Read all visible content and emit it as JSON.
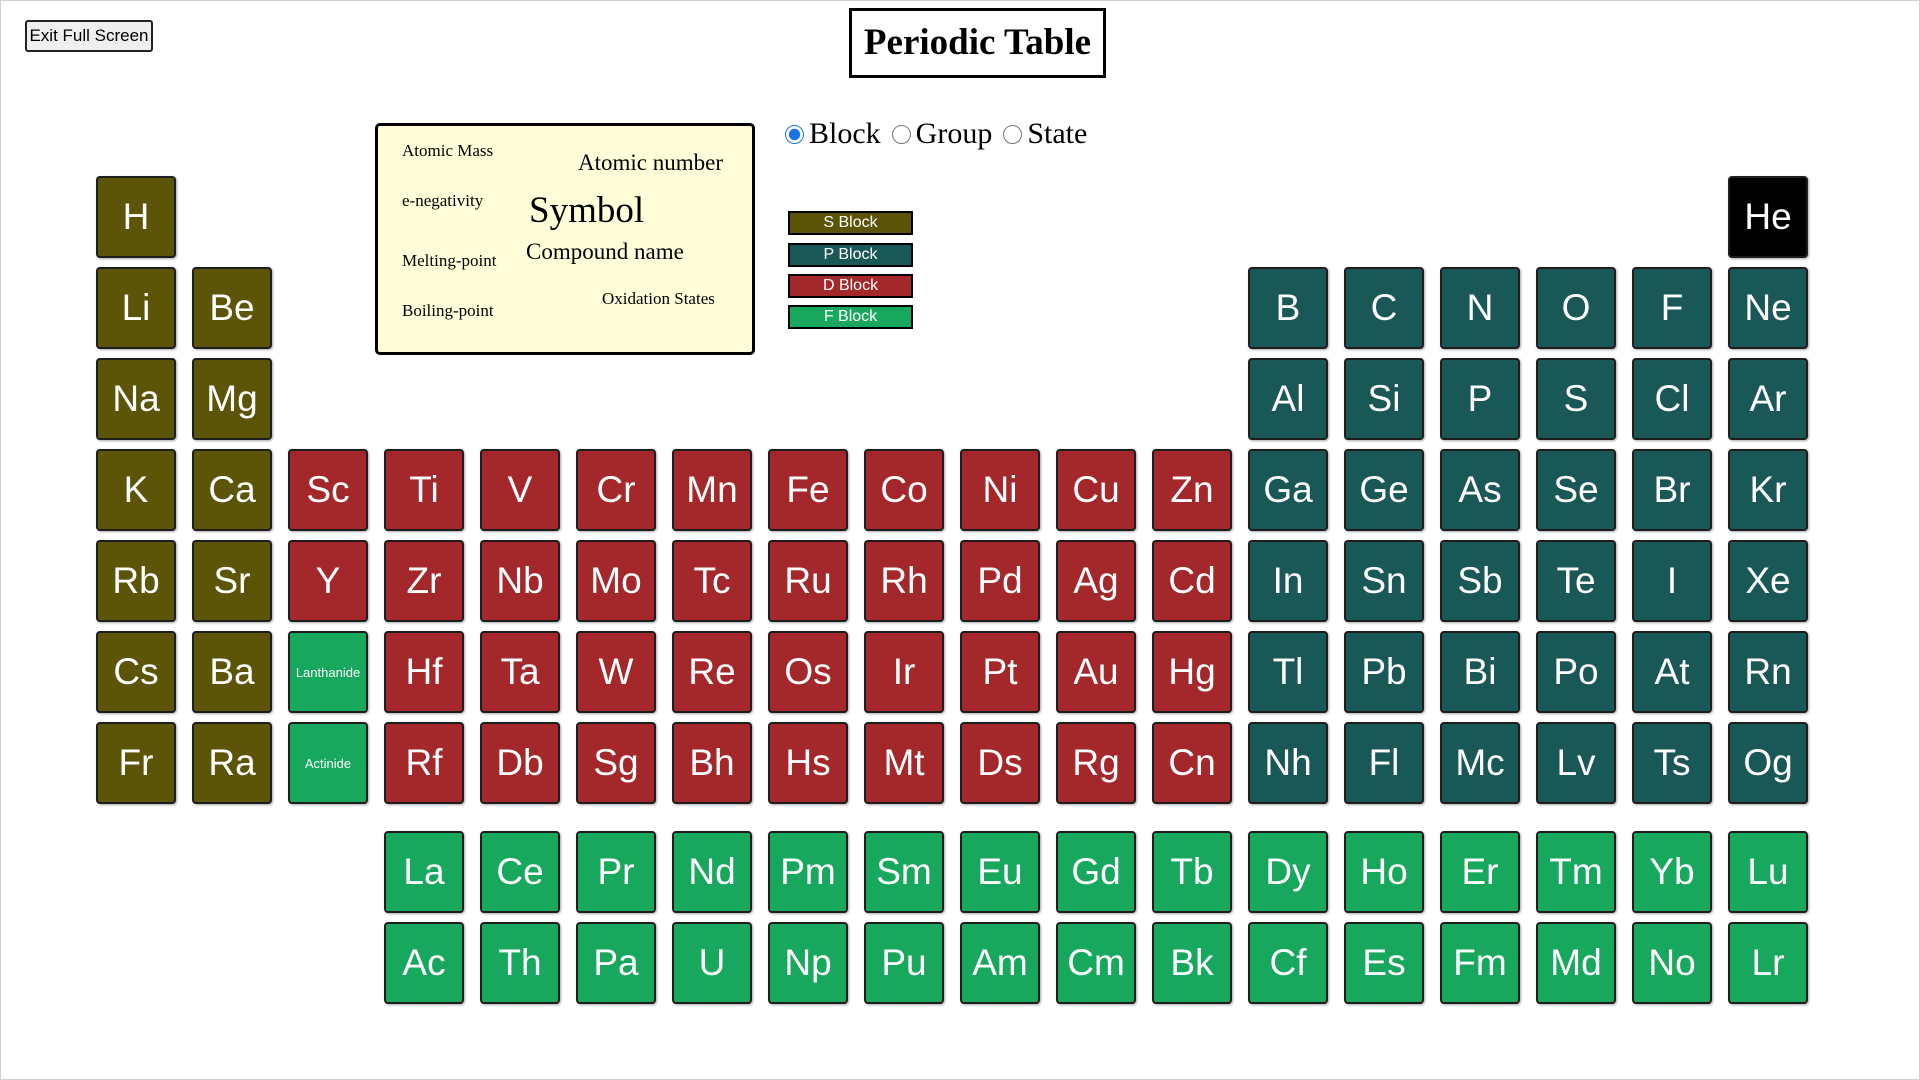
{
  "toolbar": {
    "exit_label": "Exit Full Screen"
  },
  "page_title": "Periodic Table",
  "legend_card": {
    "atomic_mass": "Atomic Mass",
    "atomic_number": "Atomic number",
    "e_negativity": "e-negativity",
    "symbol": "Symbol",
    "compound_name": "Compound name",
    "melting_point": "Melting-point",
    "oxidation_states": "Oxidation States",
    "boiling_point": "Boiling-point"
  },
  "view_modes": {
    "selected": "Block",
    "options": [
      "Block",
      "Group",
      "State"
    ]
  },
  "block_legend": [
    {
      "label": "S Block",
      "color": "#5c5508"
    },
    {
      "label": "P Block",
      "color": "#1a5757"
    },
    {
      "label": "D Block",
      "color": "#a4282b"
    },
    {
      "label": "F Block",
      "color": "#17a85e"
    }
  ],
  "colors": {
    "s": "#5c5508",
    "p": "#1a5757",
    "d": "#a4282b",
    "f": "#17a85e",
    "he": "#000000"
  },
  "elements": [
    {
      "symbol": "H",
      "block": "s",
      "row": 1,
      "col": 1
    },
    {
      "symbol": "He",
      "block": "he",
      "row": 1,
      "col": 18
    },
    {
      "symbol": "Li",
      "block": "s",
      "row": 2,
      "col": 1
    },
    {
      "symbol": "Be",
      "block": "s",
      "row": 2,
      "col": 2
    },
    {
      "symbol": "B",
      "block": "p",
      "row": 2,
      "col": 13
    },
    {
      "symbol": "C",
      "block": "p",
      "row": 2,
      "col": 14
    },
    {
      "symbol": "N",
      "block": "p",
      "row": 2,
      "col": 15
    },
    {
      "symbol": "O",
      "block": "p",
      "row": 2,
      "col": 16
    },
    {
      "symbol": "F",
      "block": "p",
      "row": 2,
      "col": 17
    },
    {
      "symbol": "Ne",
      "block": "p",
      "row": 2,
      "col": 18
    },
    {
      "symbol": "Na",
      "block": "s",
      "row": 3,
      "col": 1
    },
    {
      "symbol": "Mg",
      "block": "s",
      "row": 3,
      "col": 2
    },
    {
      "symbol": "Al",
      "block": "p",
      "row": 3,
      "col": 13
    },
    {
      "symbol": "Si",
      "block": "p",
      "row": 3,
      "col": 14
    },
    {
      "symbol": "P",
      "block": "p",
      "row": 3,
      "col": 15
    },
    {
      "symbol": "S",
      "block": "p",
      "row": 3,
      "col": 16
    },
    {
      "symbol": "Cl",
      "block": "p",
      "row": 3,
      "col": 17
    },
    {
      "symbol": "Ar",
      "block": "p",
      "row": 3,
      "col": 18
    },
    {
      "symbol": "K",
      "block": "s",
      "row": 4,
      "col": 1
    },
    {
      "symbol": "Ca",
      "block": "s",
      "row": 4,
      "col": 2
    },
    {
      "symbol": "Sc",
      "block": "d",
      "row": 4,
      "col": 3
    },
    {
      "symbol": "Ti",
      "block": "d",
      "row": 4,
      "col": 4
    },
    {
      "symbol": "V",
      "block": "d",
      "row": 4,
      "col": 5
    },
    {
      "symbol": "Cr",
      "block": "d",
      "row": 4,
      "col": 6
    },
    {
      "symbol": "Mn",
      "block": "d",
      "row": 4,
      "col": 7
    },
    {
      "symbol": "Fe",
      "block": "d",
      "row": 4,
      "col": 8
    },
    {
      "symbol": "Co",
      "block": "d",
      "row": 4,
      "col": 9
    },
    {
      "symbol": "Ni",
      "block": "d",
      "row": 4,
      "col": 10
    },
    {
      "symbol": "Cu",
      "block": "d",
      "row": 4,
      "col": 11
    },
    {
      "symbol": "Zn",
      "block": "d",
      "row": 4,
      "col": 12
    },
    {
      "symbol": "Ga",
      "block": "p",
      "row": 4,
      "col": 13
    },
    {
      "symbol": "Ge",
      "block": "p",
      "row": 4,
      "col": 14
    },
    {
      "symbol": "As",
      "block": "p",
      "row": 4,
      "col": 15
    },
    {
      "symbol": "Se",
      "block": "p",
      "row": 4,
      "col": 16
    },
    {
      "symbol": "Br",
      "block": "p",
      "row": 4,
      "col": 17
    },
    {
      "symbol": "Kr",
      "block": "p",
      "row": 4,
      "col": 18
    },
    {
      "symbol": "Rb",
      "block": "s",
      "row": 5,
      "col": 1
    },
    {
      "symbol": "Sr",
      "block": "s",
      "row": 5,
      "col": 2
    },
    {
      "symbol": "Y",
      "block": "d",
      "row": 5,
      "col": 3
    },
    {
      "symbol": "Zr",
      "block": "d",
      "row": 5,
      "col": 4
    },
    {
      "symbol": "Nb",
      "block": "d",
      "row": 5,
      "col": 5
    },
    {
      "symbol": "Mo",
      "block": "d",
      "row": 5,
      "col": 6
    },
    {
      "symbol": "Tc",
      "block": "d",
      "row": 5,
      "col": 7
    },
    {
      "symbol": "Ru",
      "block": "d",
      "row": 5,
      "col": 8
    },
    {
      "symbol": "Rh",
      "block": "d",
      "row": 5,
      "col": 9
    },
    {
      "symbol": "Pd",
      "block": "d",
      "row": 5,
      "col": 10
    },
    {
      "symbol": "Ag",
      "block": "d",
      "row": 5,
      "col": 11
    },
    {
      "symbol": "Cd",
      "block": "d",
      "row": 5,
      "col": 12
    },
    {
      "symbol": "In",
      "block": "p",
      "row": 5,
      "col": 13
    },
    {
      "symbol": "Sn",
      "block": "p",
      "row": 5,
      "col": 14
    },
    {
      "symbol": "Sb",
      "block": "p",
      "row": 5,
      "col": 15
    },
    {
      "symbol": "Te",
      "block": "p",
      "row": 5,
      "col": 16
    },
    {
      "symbol": "I",
      "block": "p",
      "row": 5,
      "col": 17
    },
    {
      "symbol": "Xe",
      "block": "p",
      "row": 5,
      "col": 18
    },
    {
      "symbol": "Cs",
      "block": "s",
      "row": 6,
      "col": 1
    },
    {
      "symbol": "Ba",
      "block": "s",
      "row": 6,
      "col": 2
    },
    {
      "symbol": "Lanthanide",
      "block": "f",
      "row": 6,
      "col": 3,
      "small": true
    },
    {
      "symbol": "Hf",
      "block": "d",
      "row": 6,
      "col": 4
    },
    {
      "symbol": "Ta",
      "block": "d",
      "row": 6,
      "col": 5
    },
    {
      "symbol": "W",
      "block": "d",
      "row": 6,
      "col": 6
    },
    {
      "symbol": "Re",
      "block": "d",
      "row": 6,
      "col": 7
    },
    {
      "symbol": "Os",
      "block": "d",
      "row": 6,
      "col": 8
    },
    {
      "symbol": "Ir",
      "block": "d",
      "row": 6,
      "col": 9
    },
    {
      "symbol": "Pt",
      "block": "d",
      "row": 6,
      "col": 10
    },
    {
      "symbol": "Au",
      "block": "d",
      "row": 6,
      "col": 11
    },
    {
      "symbol": "Hg",
      "block": "d",
      "row": 6,
      "col": 12
    },
    {
      "symbol": "Tl",
      "block": "p",
      "row": 6,
      "col": 13
    },
    {
      "symbol": "Pb",
      "block": "p",
      "row": 6,
      "col": 14
    },
    {
      "symbol": "Bi",
      "block": "p",
      "row": 6,
      "col": 15
    },
    {
      "symbol": "Po",
      "block": "p",
      "row": 6,
      "col": 16
    },
    {
      "symbol": "At",
      "block": "p",
      "row": 6,
      "col": 17
    },
    {
      "symbol": "Rn",
      "block": "p",
      "row": 6,
      "col": 18
    },
    {
      "symbol": "Fr",
      "block": "s",
      "row": 7,
      "col": 1
    },
    {
      "symbol": "Ra",
      "block": "s",
      "row": 7,
      "col": 2
    },
    {
      "symbol": "Actinide",
      "block": "f",
      "row": 7,
      "col": 3,
      "small": true
    },
    {
      "symbol": "Rf",
      "block": "d",
      "row": 7,
      "col": 4
    },
    {
      "symbol": "Db",
      "block": "d",
      "row": 7,
      "col": 5
    },
    {
      "symbol": "Sg",
      "block": "d",
      "row": 7,
      "col": 6
    },
    {
      "symbol": "Bh",
      "block": "d",
      "row": 7,
      "col": 7
    },
    {
      "symbol": "Hs",
      "block": "d",
      "row": 7,
      "col": 8
    },
    {
      "symbol": "Mt",
      "block": "d",
      "row": 7,
      "col": 9
    },
    {
      "symbol": "Ds",
      "block": "d",
      "row": 7,
      "col": 10
    },
    {
      "symbol": "Rg",
      "block": "d",
      "row": 7,
      "col": 11
    },
    {
      "symbol": "Cn",
      "block": "d",
      "row": 7,
      "col": 12
    },
    {
      "symbol": "Nh",
      "block": "p",
      "row": 7,
      "col": 13
    },
    {
      "symbol": "Fl",
      "block": "p",
      "row": 7,
      "col": 14
    },
    {
      "symbol": "Mc",
      "block": "p",
      "row": 7,
      "col": 15
    },
    {
      "symbol": "Lv",
      "block": "p",
      "row": 7,
      "col": 16
    },
    {
      "symbol": "Ts",
      "block": "p",
      "row": 7,
      "col": 17
    },
    {
      "symbol": "Og",
      "block": "p",
      "row": 7,
      "col": 18
    },
    {
      "symbol": "La",
      "block": "f",
      "row": 8,
      "col": 4
    },
    {
      "symbol": "Ce",
      "block": "f",
      "row": 8,
      "col": 5
    },
    {
      "symbol": "Pr",
      "block": "f",
      "row": 8,
      "col": 6
    },
    {
      "symbol": "Nd",
      "block": "f",
      "row": 8,
      "col": 7
    },
    {
      "symbol": "Pm",
      "block": "f",
      "row": 8,
      "col": 8
    },
    {
      "symbol": "Sm",
      "block": "f",
      "row": 8,
      "col": 9
    },
    {
      "symbol": "Eu",
      "block": "f",
      "row": 8,
      "col": 10
    },
    {
      "symbol": "Gd",
      "block": "f",
      "row": 8,
      "col": 11
    },
    {
      "symbol": "Tb",
      "block": "f",
      "row": 8,
      "col": 12
    },
    {
      "symbol": "Dy",
      "block": "f",
      "row": 8,
      "col": 13
    },
    {
      "symbol": "Ho",
      "block": "f",
      "row": 8,
      "col": 14
    },
    {
      "symbol": "Er",
      "block": "f",
      "row": 8,
      "col": 15
    },
    {
      "symbol": "Tm",
      "block": "f",
      "row": 8,
      "col": 16
    },
    {
      "symbol": "Yb",
      "block": "f",
      "row": 8,
      "col": 17
    },
    {
      "symbol": "Lu",
      "block": "f",
      "row": 8,
      "col": 18
    },
    {
      "symbol": "Ac",
      "block": "f",
      "row": 9,
      "col": 4
    },
    {
      "symbol": "Th",
      "block": "f",
      "row": 9,
      "col": 5
    },
    {
      "symbol": "Pa",
      "block": "f",
      "row": 9,
      "col": 6
    },
    {
      "symbol": "U",
      "block": "f",
      "row": 9,
      "col": 7
    },
    {
      "symbol": "Np",
      "block": "f",
      "row": 9,
      "col": 8
    },
    {
      "symbol": "Pu",
      "block": "f",
      "row": 9,
      "col": 9
    },
    {
      "symbol": "Am",
      "block": "f",
      "row": 9,
      "col": 10
    },
    {
      "symbol": "Cm",
      "block": "f",
      "row": 9,
      "col": 11
    },
    {
      "symbol": "Bk",
      "block": "f",
      "row": 9,
      "col": 12
    },
    {
      "symbol": "Cf",
      "block": "f",
      "row": 9,
      "col": 13
    },
    {
      "symbol": "Es",
      "block": "f",
      "row": 9,
      "col": 14
    },
    {
      "symbol": "Fm",
      "block": "f",
      "row": 9,
      "col": 15
    },
    {
      "symbol": "Md",
      "block": "f",
      "row": 9,
      "col": 16
    },
    {
      "symbol": "No",
      "block": "f",
      "row": 9,
      "col": 17
    },
    {
      "symbol": "Lr",
      "block": "f",
      "row": 9,
      "col": 18
    }
  ]
}
